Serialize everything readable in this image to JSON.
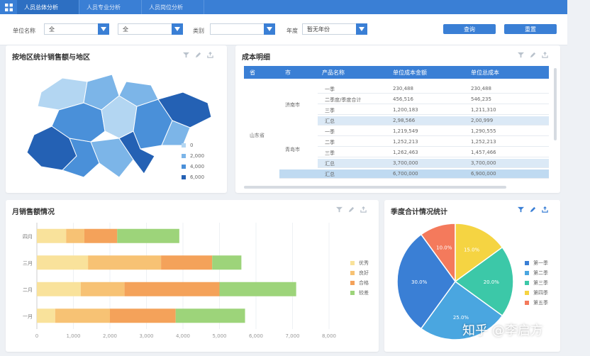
{
  "tabs": [
    "人员总体分析",
    "人员专业分析",
    "人员岗位分析"
  ],
  "filters": [
    {
      "label": "单位名称",
      "value": "全"
    },
    {
      "label": "",
      "value": "全"
    },
    {
      "label": "类别",
      "value": ""
    },
    {
      "label": "年度",
      "value": "暂无年份"
    }
  ],
  "buttons": {
    "query": "查询",
    "reset": "重置"
  },
  "map_panel": {
    "title": "按地区统计销售额与地区",
    "legend": [
      "0",
      "2,000",
      "4,000",
      "6,000"
    ],
    "colors": [
      "#b3d6f2",
      "#7cb5e8",
      "#4a90d9",
      "#2461b4"
    ]
  },
  "table_panel": {
    "title": "成本明细",
    "headers": [
      "省",
      "市",
      "产品名称",
      "单位成本金额",
      "单位总成本"
    ],
    "province": "山东省",
    "cities": [
      "济南市",
      "青岛市"
    ],
    "rows": [
      {
        "name": "一季",
        "c1": "230,488",
        "c2": "230,488",
        "kind": "row"
      },
      {
        "name": "二季度/季度合计",
        "c1": "456,516",
        "c2": "546,235",
        "kind": "row"
      },
      {
        "name": "三季",
        "c1": "1,200,183",
        "c2": "1,211,310",
        "kind": "row"
      },
      {
        "name": "汇总",
        "c1": "2,98,566",
        "c2": "2,00,999",
        "kind": "sub"
      },
      {
        "name": "一季",
        "c1": "1,219,549",
        "c2": "1,290,555",
        "kind": "row"
      },
      {
        "name": "二季",
        "c1": "1,252,213",
        "c2": "1,252,213",
        "kind": "row"
      },
      {
        "name": "三季",
        "c1": "1,262,463",
        "c2": "1,457,466",
        "kind": "row"
      },
      {
        "name": "汇总",
        "c1": "3,700,000",
        "c2": "3,700,000",
        "kind": "sub"
      },
      {
        "name": "汇总",
        "c1": "6,700,000",
        "c2": "6,900,000",
        "kind": "total"
      }
    ]
  },
  "bar_panel": {
    "title": "月销售额情况",
    "legend": [
      "优秀",
      "良好",
      "合格",
      "较差"
    ],
    "colors": [
      "#f9e29b",
      "#f7c274",
      "#f4a25a",
      "#9dd47a"
    ]
  },
  "pie_panel": {
    "title": "季度合计情况统计",
    "legend": [
      "第一季",
      "第二季",
      "第三季",
      "第四季",
      "第五季"
    ],
    "colors": [
      "#3a7fd5",
      "#4aa6e0",
      "#3cc8a8",
      "#f5d442",
      "#f47a5c"
    ]
  },
  "chart_data": [
    {
      "type": "bar",
      "orientation": "horizontal",
      "stacked": true,
      "categories": [
        "四月",
        "三月",
        "二月",
        "一月"
      ],
      "series": [
        {
          "name": "优秀",
          "values": [
            800,
            1400,
            1200,
            500
          ]
        },
        {
          "name": "良好",
          "values": [
            500,
            2000,
            1200,
            1500
          ]
        },
        {
          "name": "合格",
          "values": [
            900,
            1400,
            2600,
            1800
          ]
        },
        {
          "name": "较差",
          "values": [
            1700,
            800,
            2100,
            1900
          ]
        }
      ],
      "xlim": [
        0,
        8000
      ],
      "xticks": [
        "0",
        "1,000",
        "2,000",
        "3,000",
        "4,000",
        "5,000",
        "6,000",
        "7,000",
        "8,000"
      ]
    },
    {
      "type": "pie",
      "labels": [
        "第一季",
        "第二季",
        "第三季",
        "第四季",
        "第五季"
      ],
      "values": [
        30,
        25,
        20,
        15,
        10
      ],
      "data_labels": [
        "30.0%",
        "25.0%",
        "20.0%",
        "15.0%",
        "10.0%"
      ]
    }
  ],
  "watermark": "知乎 @李启方"
}
